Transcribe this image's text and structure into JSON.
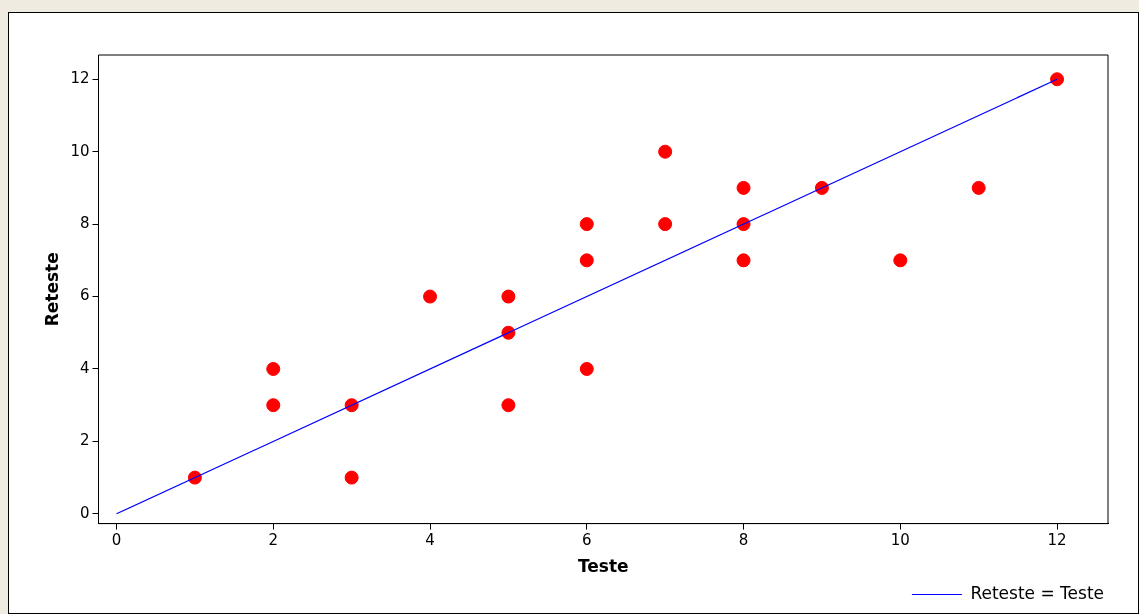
{
  "chart_data": {
    "type": "scatter",
    "xlabel": "Teste",
    "ylabel": "Reteste",
    "xlim": [
      -0.23,
      12.65
    ],
    "ylim": [
      -0.27,
      12.67
    ],
    "xticks": [
      0,
      2,
      4,
      6,
      8,
      10,
      12
    ],
    "yticks": [
      0,
      2,
      4,
      6,
      8,
      10,
      12
    ],
    "grid": false,
    "legend": "bottom right",
    "series": [
      {
        "type": "scatter",
        "marker": "circle",
        "color": "#ff0000",
        "x": [
          1,
          2,
          2,
          3,
          3,
          4,
          5,
          5,
          5,
          6,
          6,
          6,
          7,
          7,
          8,
          8,
          8,
          9,
          10,
          11,
          12
        ],
        "values": [
          1,
          4,
          3,
          3,
          1,
          6,
          6,
          5,
          3,
          8,
          7,
          4,
          10,
          8,
          9,
          8,
          7,
          9,
          7,
          9,
          12
        ]
      },
      {
        "type": "line",
        "marker": "none",
        "name": "Reteste = Teste",
        "color": "#0000ff",
        "x": [
          0,
          12
        ],
        "values": [
          0,
          12
        ]
      }
    ]
  }
}
